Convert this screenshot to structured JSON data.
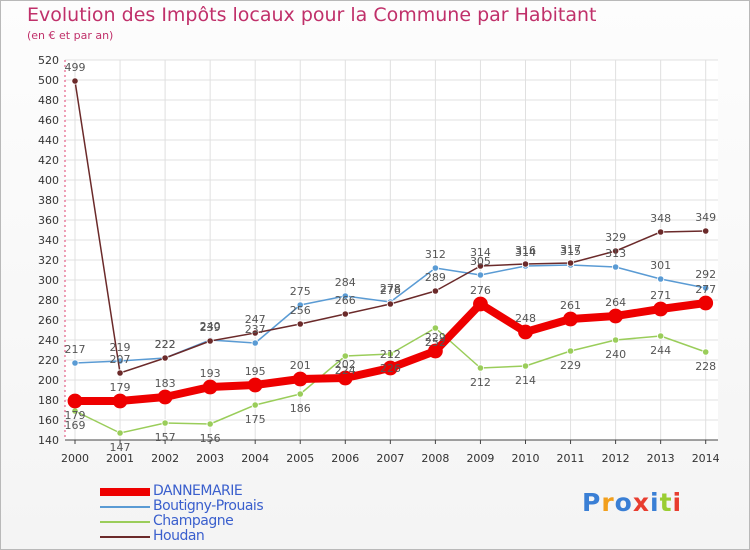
{
  "title": "Evolution des Impôts locaux pour la Commune par Habitant",
  "subtitle": "(en € et par an)",
  "logo": {
    "text": "Proxiti"
  },
  "colors": {
    "title": "#c0306a",
    "legend_text": "#3a5fcd",
    "grid": "#e0e0e0",
    "axis": "#444444"
  },
  "chart_data": {
    "type": "line",
    "title": "Evolution des Impôts locaux pour la Commune par Habitant",
    "subtitle": "(en € et par an)",
    "categories": [
      "2000",
      "2001",
      "2002",
      "2003",
      "2004",
      "2005",
      "2006",
      "2007",
      "2008",
      "2009",
      "2010",
      "2011",
      "2012",
      "2013",
      "2014"
    ],
    "ylim": [
      140,
      520
    ],
    "yticks": [
      140,
      160,
      180,
      200,
      220,
      240,
      260,
      280,
      300,
      320,
      340,
      360,
      380,
      400,
      420,
      440,
      460,
      480,
      500,
      520
    ],
    "grid": true,
    "legend_position": "bottom-left",
    "series": [
      {
        "name": "DANNEMARIE",
        "color": "#ee0000",
        "width": 8,
        "values": [
          179,
          179,
          183,
          193,
          195,
          201,
          202,
          212,
          229,
          276,
          248,
          261,
          264,
          271,
          277
        ],
        "labels": [
          "179",
          "179",
          "183",
          "193",
          "195",
          "201",
          "202",
          "212",
          "229",
          "276",
          "248",
          "261",
          "264",
          "271",
          "277"
        ]
      },
      {
        "name": "Boutigny-Prouais",
        "color": "#5a9bd4",
        "width": 1.5,
        "values": [
          217,
          219,
          222,
          240,
          237,
          275,
          284,
          278,
          312,
          305,
          314,
          315,
          313,
          301,
          292
        ],
        "labels": [
          "217",
          "219",
          "222",
          "240",
          "237",
          "275",
          "284",
          "278",
          "312",
          "305",
          "314",
          "315",
          "313",
          "301",
          "292"
        ]
      },
      {
        "name": "Champagne",
        "color": "#9acd5a",
        "width": 1.5,
        "values": [
          169,
          147,
          157,
          156,
          175,
          186,
          224,
          226,
          252,
          212,
          214,
          229,
          240,
          244,
          228
        ],
        "labels": [
          "169",
          "147",
          "157",
          "156",
          "175",
          "186",
          "224",
          "226",
          "252",
          "212",
          "214",
          "229",
          "240",
          "244",
          "228"
        ]
      },
      {
        "name": "Houdan",
        "color": "#6b2a2a",
        "width": 1.5,
        "values": [
          499,
          207,
          222,
          239,
          247,
          256,
          266,
          276,
          289,
          314,
          316,
          317,
          329,
          348,
          349
        ],
        "labels": [
          "499",
          "207",
          "222",
          "239",
          "247",
          "256",
          "266",
          "276",
          "289",
          "314",
          "316",
          "317",
          "329",
          "348",
          "349"
        ]
      }
    ]
  }
}
